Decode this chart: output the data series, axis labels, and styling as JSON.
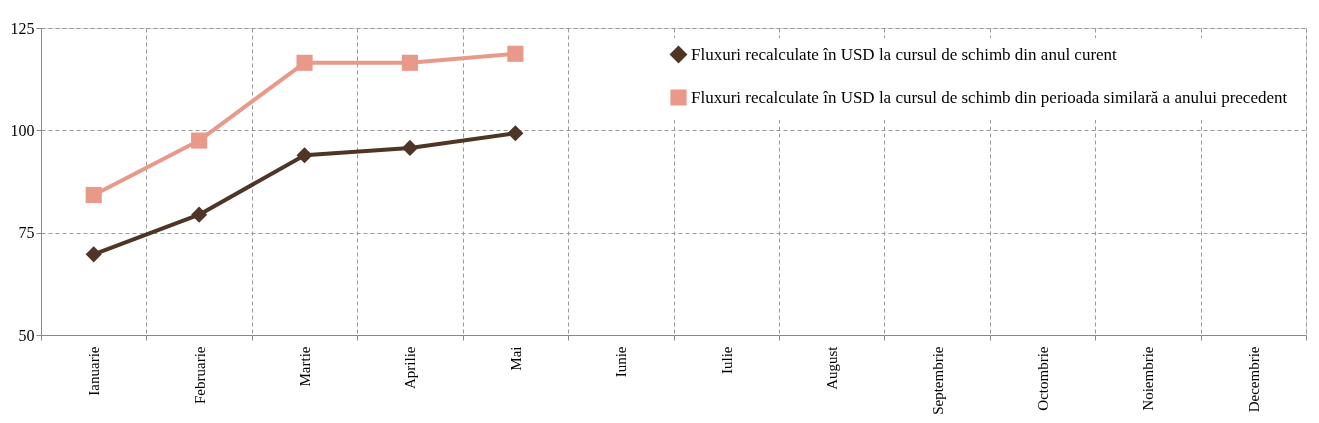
{
  "chart_data": {
    "type": "line",
    "categories": [
      "Ianuarie",
      "Februarie",
      "Martie",
      "Aprilie",
      "Mai",
      "Iunie",
      "Iulie",
      "August",
      "Septembrie",
      "Octombrie",
      "Noiembrie",
      "Decembrie"
    ],
    "series": [
      {
        "name": "Fluxuri recalculate în USD la cursul de schimb din anul curent",
        "color": "#4e3526",
        "marker": "diamond",
        "values": [
          69.7,
          79.4,
          93.9,
          95.7,
          99.3,
          null,
          null,
          null,
          null,
          null,
          null,
          null
        ]
      },
      {
        "name": "Fluxuri recalculate în USD la cursul de schimb din perioada similară a anului precedent",
        "color": "#e8998a",
        "marker": "square",
        "values": [
          84.2,
          97.5,
          116.5,
          116.5,
          118.7,
          null,
          null,
          null,
          null,
          null,
          null,
          null
        ]
      }
    ],
    "ylim": [
      50,
      125
    ],
    "yticks": [
      50,
      75,
      100,
      125
    ],
    "grid": true,
    "legend": "top right"
  }
}
